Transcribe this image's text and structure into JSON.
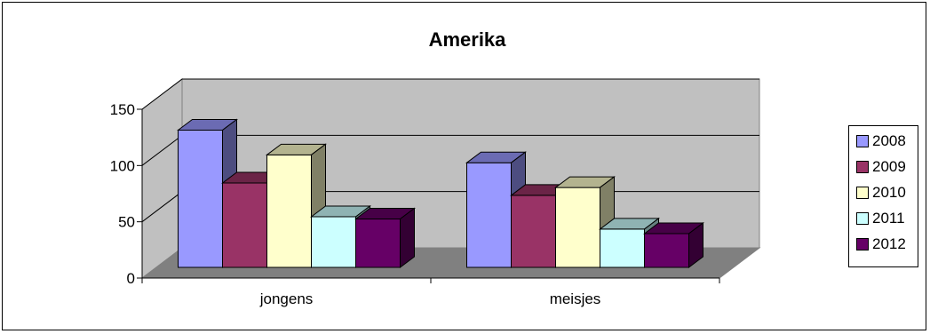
{
  "chart_data": {
    "type": "bar",
    "title": "Amerika",
    "xlabel": "",
    "ylabel": "",
    "categories": [
      "jongens",
      "meisjes"
    ],
    "series": [
      {
        "name": "2008",
        "values": [
          122,
          93
        ],
        "color": "#9999ff"
      },
      {
        "name": "2009",
        "values": [
          75,
          64
        ],
        "color": "#993366"
      },
      {
        "name": "2010",
        "values": [
          100,
          71
        ],
        "color": "#ffffcc"
      },
      {
        "name": "2011",
        "values": [
          45,
          34
        ],
        "color": "#ccffff"
      },
      {
        "name": "2012",
        "values": [
          43,
          30
        ],
        "color": "#660066"
      }
    ],
    "ylim": [
      0,
      150
    ],
    "yticks": [
      0,
      50,
      100,
      150
    ],
    "grid": true,
    "legend_position": "right",
    "style": "3d-clustered-column"
  }
}
